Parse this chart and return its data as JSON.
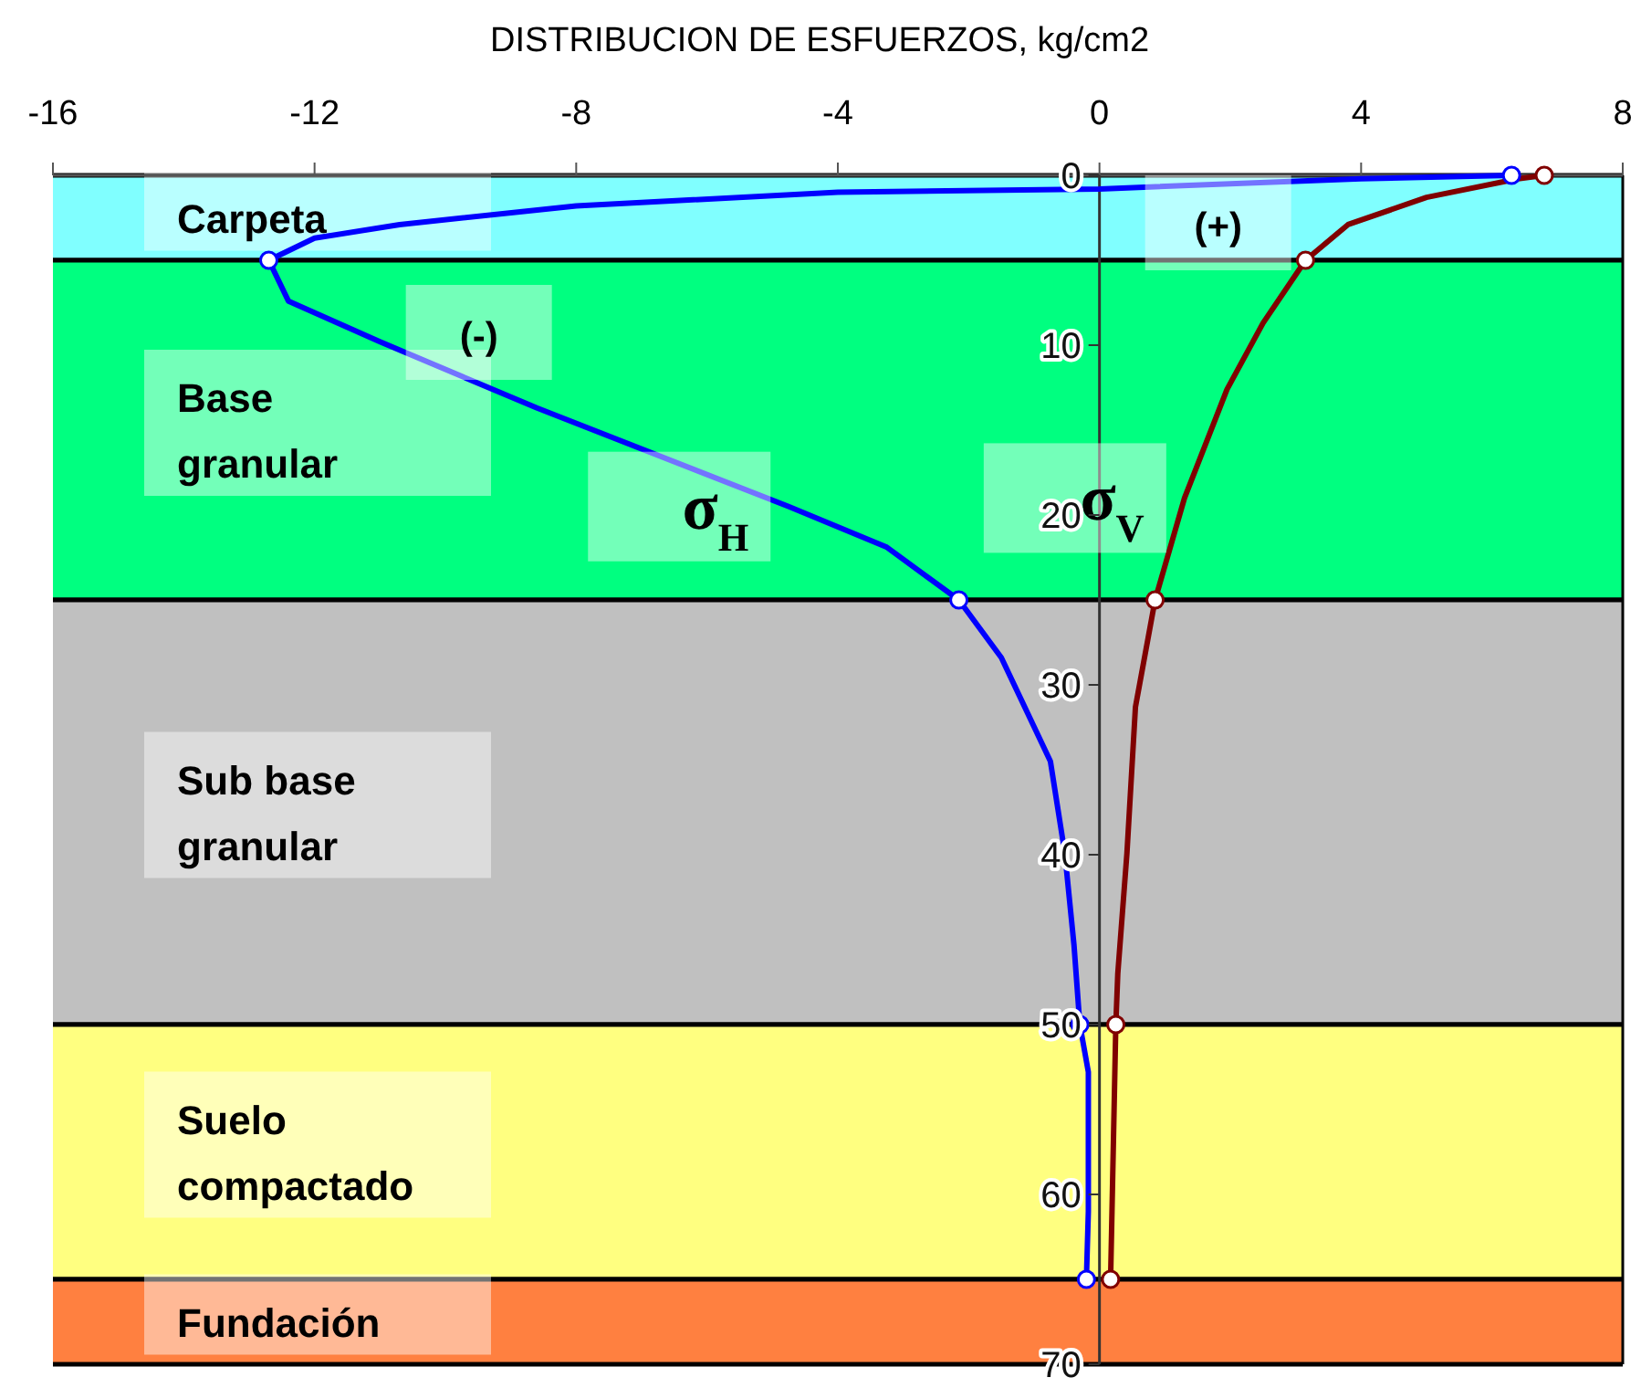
{
  "chart_data": {
    "type": "line",
    "xlabel": "DISTRIBUCION DE ESFUERZOS, kg/cm2",
    "xlim": [
      -16,
      8
    ],
    "xticks": [
      -16,
      -12,
      -8,
      -4,
      0,
      4,
      8
    ],
    "ylim": [
      70,
      0
    ],
    "yticks": [
      0,
      10,
      20,
      30,
      40,
      50,
      60,
      70
    ],
    "bands": [
      {
        "axis": "y",
        "from": 0,
        "to": 5,
        "label": "Carpeta",
        "color": "#80ffff"
      },
      {
        "axis": "y",
        "from": 5,
        "to": 25,
        "label": "Base granular",
        "color": "#00ff80"
      },
      {
        "axis": "y",
        "from": 25,
        "to": 50,
        "label": "Sub base granular",
        "color": "#c0c0c0"
      },
      {
        "axis": "y",
        "from": 50,
        "to": 65,
        "label": "Suelo compactado",
        "color": "#ffff80"
      },
      {
        "axis": "y",
        "from": 65,
        "to": 70,
        "label": "Fundación",
        "color": "#ff8040"
      }
    ],
    "annotations": [
      "(+)",
      "(-)"
    ],
    "series": [
      {
        "name": "σ$_{H}$",
        "marker": "none",
        "color": "#0000ff",
        "x": [
          6.3,
          4,
          0,
          -4,
          -8,
          -10.7,
          -12,
          -12.7,
          -12.4,
          -11,
          -8.6,
          -4.75,
          -3.25,
          -2.15,
          -1.5,
          -0.75,
          -0.53,
          -0.39,
          -0.3,
          -0.17,
          -0.17,
          -0.2
        ],
        "values": [
          0,
          0.2,
          0.8,
          1,
          1.8,
          2.9,
          3.7,
          5,
          7.4,
          9.8,
          13.7,
          19.5,
          21.9,
          25,
          28.4,
          34.5,
          39.9,
          45.3,
          50,
          52.8,
          61,
          65
        ]
      },
      {
        "name": "σ$_{V}$",
        "marker": "none",
        "color": "#800000",
        "x": [
          6.8,
          6.4,
          5,
          3.8,
          3.15,
          2.5,
          1.95,
          1.3,
          0.85,
          0.55,
          0.42,
          0.28,
          0.25,
          0.17
        ],
        "values": [
          0,
          0.2,
          1.3,
          2.9,
          5,
          8.7,
          12.6,
          19,
          25,
          31.3,
          39.9,
          47,
          50,
          65
        ]
      },
      {
        "type": "scatter",
        "marker": "circle",
        "color": "#0000ff",
        "x": [
          6.3,
          -12.7,
          -2.15,
          -0.3,
          -0.2
        ],
        "values": [
          0,
          5,
          25,
          50,
          65
        ]
      },
      {
        "type": "scatter",
        "marker": "circle",
        "color": "#800000",
        "x": [
          6.8,
          3.15,
          0.85,
          0.25,
          0.17
        ],
        "values": [
          0,
          5,
          25,
          50,
          65
        ]
      }
    ]
  }
}
